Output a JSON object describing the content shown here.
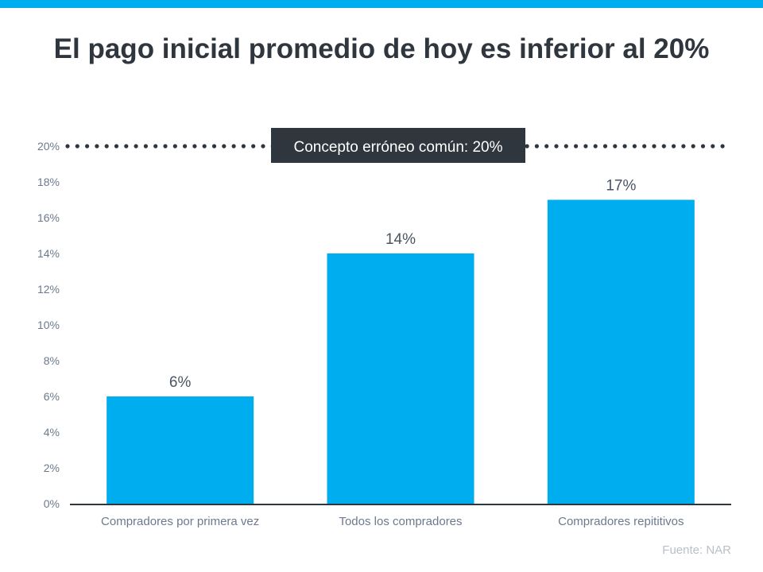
{
  "colors": {
    "accent": "#00aeef",
    "bar": "#00aeef",
    "text_dark": "#2f363e",
    "axis_text": "#6b7a8c",
    "source_text": "#b9c0c7"
  },
  "chart_data": {
    "type": "bar",
    "title": "El pago inicial promedio de hoy es inferior al 20%",
    "categories": [
      "Compradores por primera vez",
      "Todos los compradores",
      "Compradores repititivos"
    ],
    "values": [
      6,
      14,
      17
    ],
    "data_labels": [
      "6%",
      "14%",
      "17%"
    ],
    "ylim": [
      0,
      20
    ],
    "yticks": [
      0,
      2,
      4,
      6,
      8,
      10,
      12,
      14,
      16,
      18,
      20
    ],
    "ytick_labels": [
      "0%",
      "2%",
      "4%",
      "6%",
      "8%",
      "10%",
      "12%",
      "14%",
      "16%",
      "18%",
      "20%"
    ],
    "grid": false,
    "reference_line": {
      "value": 20,
      "style": "dotted",
      "label": "Concepto erróneo común: 20%"
    },
    "source": "Fuente: NAR"
  }
}
